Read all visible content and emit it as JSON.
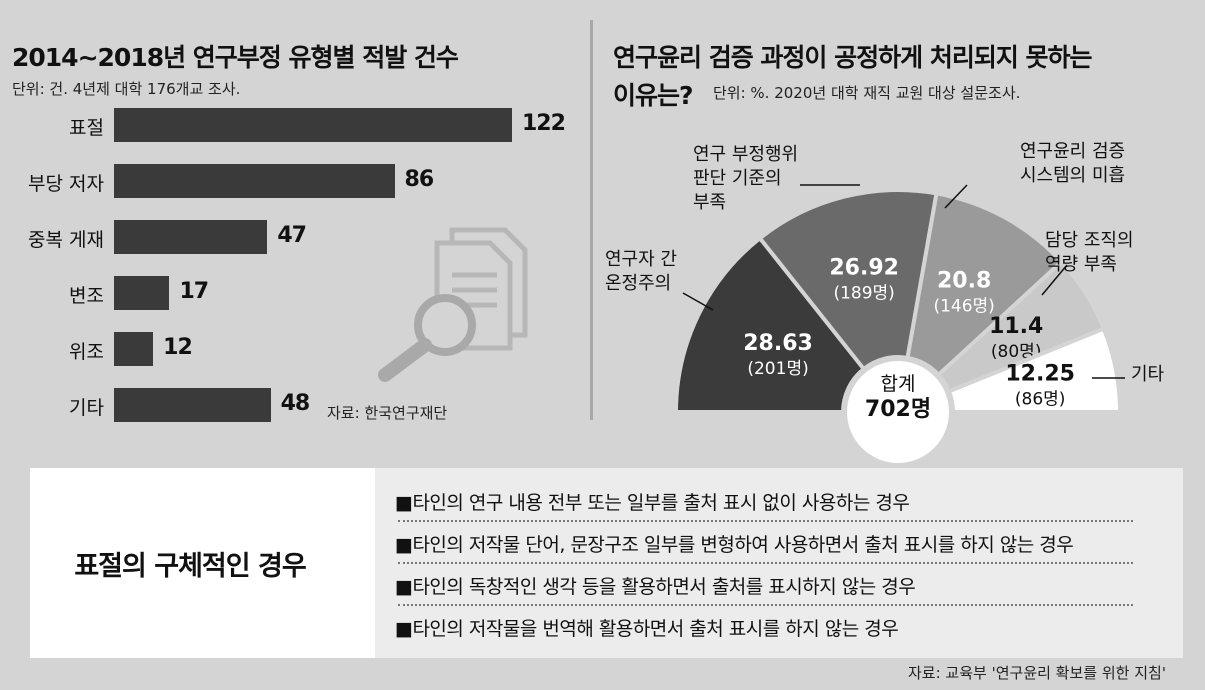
{
  "left": {
    "title": "2014~2018년 연구부정 유형별 적발 건수",
    "unit": "단위: 건. 4년제 대학 176개교 조사.",
    "source": "자료: 한국연구재단",
    "icon": "document-magnifier-icon"
  },
  "right": {
    "title_line1": "연구윤리 검증 과정이 공정하게 처리되지 못하는",
    "title_line2": "이유는?",
    "unit": "단위: %. 2020년 대학 재직 교원 대상 설문조사.",
    "total_label": "합계",
    "total_value": "702명"
  },
  "bottom": {
    "heading": "표절의 구체적인 경우",
    "items": [
      "■타인의 연구 내용 전부 또는 일부를 출처 표시 없이 사용하는 경우",
      "■타인의 저작물 단어, 문장구조 일부를 변형하여 사용하면서 출처 표시를 하지 않는 경우",
      "■타인의 독창적인 생각 등을 활용하면서 출처를 표시하지 않는 경우",
      "■타인의 저작물을 번역해 활용하면서 출처 표시를 하지 않는 경우"
    ],
    "source": "자료: 교육부 '연구윤리 확보를 위한 지침'"
  },
  "chart_data": [
    {
      "type": "bar",
      "orientation": "horizontal",
      "title": "2014~2018년 연구부정 유형별 적발 건수",
      "categories": [
        "표절",
        "부당 저자",
        "중복 게재",
        "변조",
        "위조",
        "기타"
      ],
      "values": [
        122,
        86,
        47,
        17,
        12,
        48
      ],
      "xlim": [
        0,
        122
      ],
      "grid": false,
      "colors": {
        "bar": "#3a3a3a"
      }
    },
    {
      "type": "pie",
      "subtype": "semicircle",
      "title": "연구윤리 검증 과정이 공정하게 처리되지 못하는 이유는?",
      "slices": [
        {
          "label": "연구자 간\n온정주의",
          "value": 28.63,
          "count": "(201명)",
          "color": "#3b3b3b",
          "text_color": "#ffffff"
        },
        {
          "label": "연구 부정행위\n판단 기준의\n부족",
          "value": 26.92,
          "count": "(189명)",
          "color": "#6a6a6a",
          "text_color": "#ffffff"
        },
        {
          "label": "연구윤리 검증\n시스템의 미흡",
          "value": 20.8,
          "count": "(146명)",
          "color": "#9a9a9a",
          "text_color": "#ffffff"
        },
        {
          "label": "담당 조직의\n역량 부족",
          "value": 11.4,
          "count": "(80명)",
          "color": "#c9c9c9",
          "text_color": "#111111"
        },
        {
          "label": "기타",
          "value": 12.25,
          "count": "(86명)",
          "color": "#ffffff",
          "text_color": "#111111"
        }
      ],
      "total": "702명"
    }
  ]
}
